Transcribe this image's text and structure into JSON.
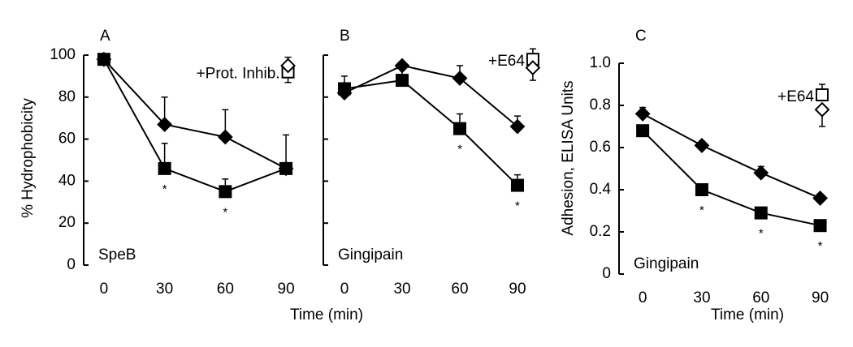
{
  "chart_data": [
    {
      "type": "line",
      "panel_label": "A",
      "note": "SpeB",
      "annotation": "+Prot. Inhib.",
      "ylabel": "% Hydrophobicity",
      "xlabel": "Time (min)",
      "x": [
        0,
        30,
        60,
        90
      ],
      "xlim": [
        -10,
        98
      ],
      "xticks": [
        0,
        30,
        60,
        90
      ],
      "ylim": [
        0,
        100
      ],
      "yticks": [
        0,
        20,
        40,
        60,
        80,
        100
      ],
      "ytick_labels": true,
      "series": [
        {
          "marker": "square",
          "filled": true,
          "color": "#000000",
          "values": [
            98,
            46,
            35,
            46
          ],
          "errors": [
            0,
            12,
            6,
            16
          ]
        },
        {
          "marker": "diamond",
          "filled": true,
          "color": "#000000",
          "values": [
            98,
            67,
            61,
            46
          ],
          "errors": [
            0,
            13,
            13,
            0
          ]
        }
      ],
      "inhibitor": {
        "x": 91,
        "series": [
          {
            "marker": "square",
            "filled": false,
            "color": "#000000",
            "value": 92,
            "error": 7,
            "error_side": "up"
          },
          {
            "marker": "diamond",
            "filled": false,
            "color": "#000000",
            "value": 95,
            "error": 8,
            "error_side": "down"
          }
        ]
      },
      "asterisks": {
        "label": "*",
        "x": [
          30,
          60
        ]
      }
    },
    {
      "type": "line",
      "panel_label": "B",
      "note": "Gingipain",
      "annotation": "+E64",
      "x": [
        0,
        30,
        60,
        90
      ],
      "xlim": [
        -11,
        101
      ],
      "xticks": [
        0,
        30,
        60,
        90
      ],
      "ylim": [
        0,
        100
      ],
      "yticks": [
        0,
        20,
        40,
        60,
        80,
        100
      ],
      "ytick_labels": false,
      "series": [
        {
          "marker": "square",
          "filled": true,
          "color": "#000000",
          "values": [
            84,
            88,
            65,
            38
          ],
          "errors": [
            6,
            6,
            7,
            5
          ]
        },
        {
          "marker": "diamond",
          "filled": true,
          "color": "#000000",
          "values": [
            82,
            95,
            89,
            66
          ],
          "errors": [
            0,
            0,
            6,
            5
          ]
        }
      ],
      "inhibitor": {
        "x": 98,
        "series": [
          {
            "marker": "square",
            "filled": false,
            "color": "#000000",
            "value": 98,
            "error": 5,
            "error_side": "up"
          },
          {
            "marker": "diamond",
            "filled": false,
            "color": "#000000",
            "value": 94,
            "error": 6,
            "error_side": "down"
          }
        ]
      },
      "asterisks": {
        "label": "*",
        "x": [
          60,
          90
        ]
      }
    },
    {
      "type": "line",
      "panel_label": "C",
      "note": "Gingipain",
      "annotation": "+E64",
      "ylabel": "Adhesion, ELISA Units",
      "xlabel": "Time (min)",
      "x": [
        0,
        30,
        60,
        90
      ],
      "xlim": [
        -12,
        98
      ],
      "xticks": [
        0,
        30,
        60,
        90
      ],
      "ylim": [
        0,
        1
      ],
      "yticks": [
        0,
        0.2,
        0.4,
        0.6,
        0.8,
        {
          "value": 1,
          "label": "1.0"
        }
      ],
      "ytick_labels": true,
      "series": [
        {
          "marker": "square",
          "filled": true,
          "color": "#000000",
          "values": [
            0.68,
            0.4,
            0.29,
            0.23
          ],
          "errors": [
            0.02,
            0.02,
            0.02,
            0.02
          ]
        },
        {
          "marker": "diamond",
          "filled": true,
          "color": "#000000",
          "values": [
            0.76,
            0.61,
            0.48,
            0.36
          ],
          "errors": [
            0.03,
            0.02,
            0.03,
            0.02
          ]
        }
      ],
      "inhibitor": {
        "x": 91,
        "series": [
          {
            "marker": "square",
            "filled": false,
            "color": "#000000",
            "value": 0.85,
            "error": 0.05,
            "error_side": "up"
          },
          {
            "marker": "diamond",
            "filled": false,
            "color": "#000000",
            "value": 0.78,
            "error": 0.08,
            "error_side": "down"
          }
        ]
      },
      "asterisks": {
        "label": "*",
        "x": [
          30,
          60,
          90
        ]
      }
    }
  ]
}
